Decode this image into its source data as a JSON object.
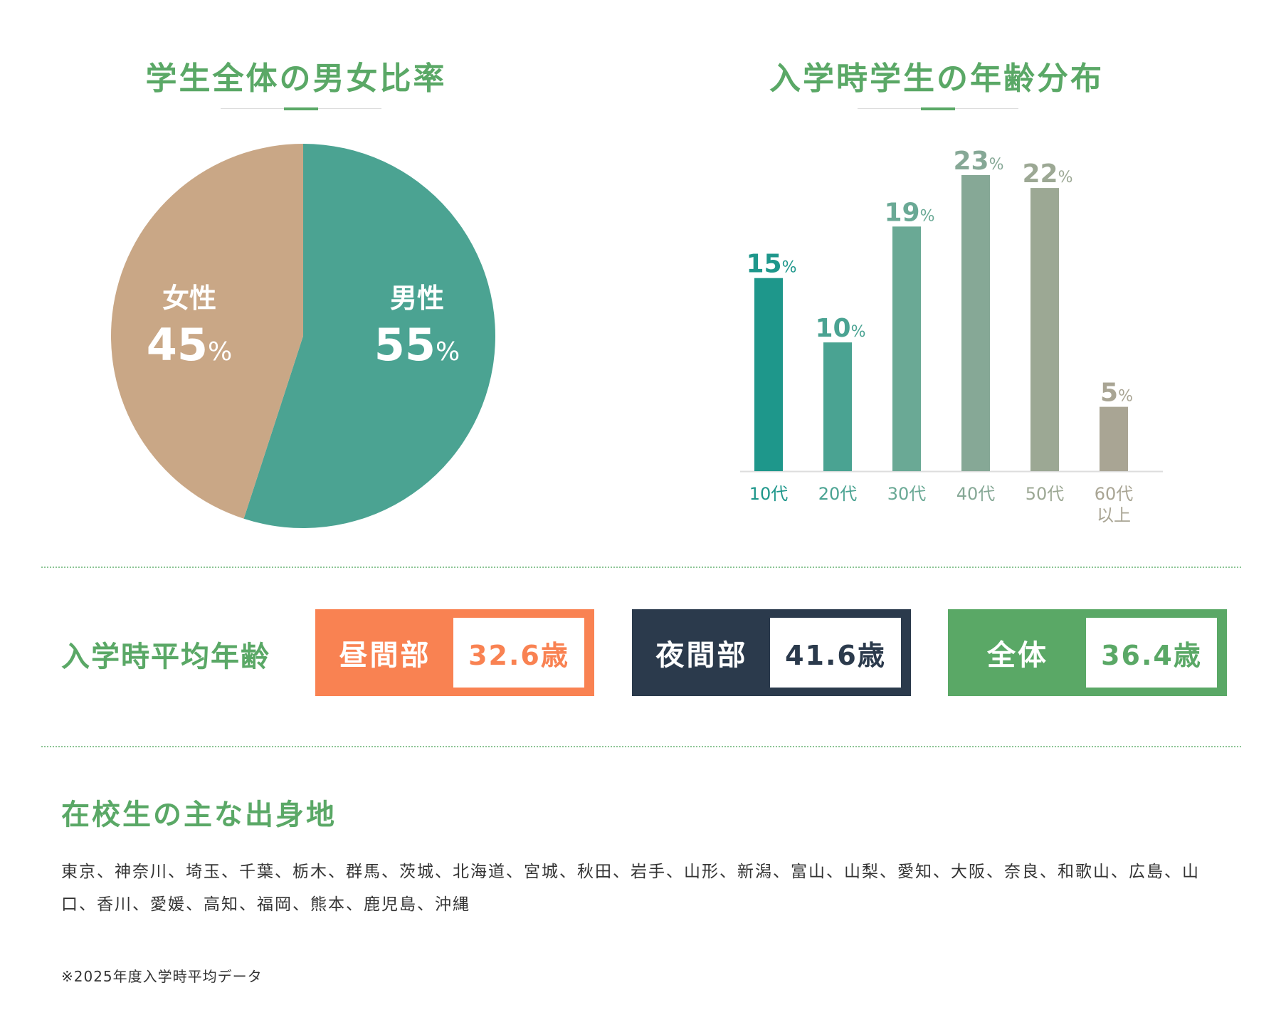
{
  "pie_title": "学生全体の男女比率",
  "bar_title": "入学時学生の年齢分布",
  "chart_data": [
    {
      "type": "pie",
      "title": "学生全体の男女比率",
      "slices": [
        {
          "label": "男性",
          "value": 55,
          "display": "55",
          "unit": "%",
          "color": "#4ba392"
        },
        {
          "label": "女性",
          "value": 45,
          "display": "45",
          "unit": "%",
          "color": "#c9a786"
        }
      ]
    },
    {
      "type": "bar",
      "title": "入学時学生の年齢分布",
      "categories": [
        "10代",
        "20代",
        "30代",
        "40代",
        "50代",
        "60代以上"
      ],
      "values": [
        15,
        10,
        19,
        23,
        22,
        5
      ],
      "unit": "%",
      "colors": [
        "#1e978b",
        "#4aa392",
        "#6aa995",
        "#86a896",
        "#9ca894",
        "#a9a594"
      ],
      "ylim": [
        0,
        23
      ]
    }
  ],
  "average_age": {
    "heading": "入学時平均年齢",
    "boxes": [
      {
        "label": "昼間部",
        "value": "32.6歳",
        "color": "#f98252"
      },
      {
        "label": "夜間部",
        "value": "41.6歳",
        "color": "#2b3a4c"
      },
      {
        "label": "全体",
        "value": "36.4歳",
        "color": "#5aa866"
      }
    ]
  },
  "origins": {
    "heading": "在校生の主な出身地",
    "text": "東京、神奈川、埼玉、千葉、栃木、群馬、茨城、北海道、宮城、秋田、岩手、山形、新潟、富山、山梨、愛知、大阪、奈良、和歌山、広島、山口、香川、愛媛、高知、福岡、熊本、鹿児島、沖縄"
  },
  "note": "※2025年度入学時平均データ"
}
